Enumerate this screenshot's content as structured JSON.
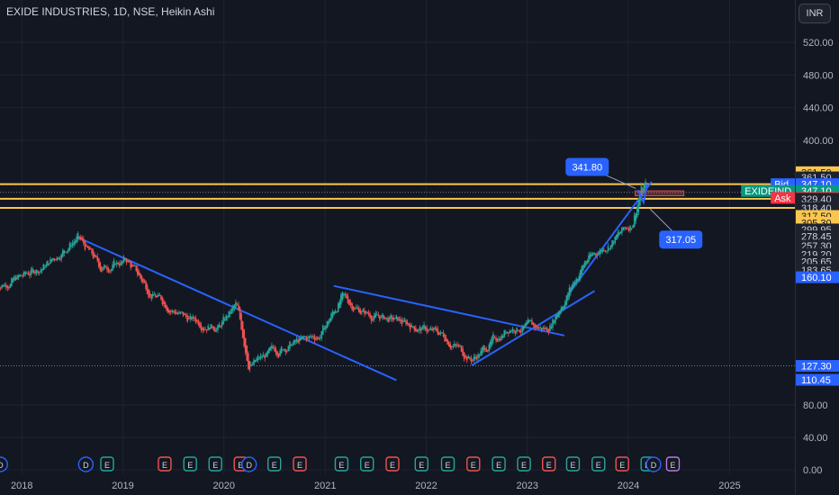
{
  "header": {
    "title": "EXIDE INDUSTRIES, 1D, NSE, Heikin Ashi",
    "currency": "INR"
  },
  "colors": {
    "background": "#131722",
    "up": "#26a69a",
    "down": "#ef5350",
    "trendline": "#2962ff",
    "level": "#f9c74f",
    "grid": "#1f2330",
    "axis_text": "#b2b5be"
  },
  "chart_data": {
    "type": "candlestick",
    "ylim": [
      0,
      546
    ],
    "y_ticks": [
      "0.00",
      "40.00",
      "80.00",
      "400.00",
      "440.00",
      "480.00",
      "520.00"
    ],
    "x_ticks": [
      "2018",
      "2019",
      "2020",
      "2021",
      "2022",
      "2023",
      "2024",
      "2025"
    ],
    "price_path": [
      {
        "date": "2017-10-01",
        "price": 225
      },
      {
        "date": "2018-01-01",
        "price": 235
      },
      {
        "date": "2018-04-01",
        "price": 250
      },
      {
        "date": "2018-07-20",
        "price": 283
      },
      {
        "date": "2018-10-15",
        "price": 245
      },
      {
        "date": "2019-01-15",
        "price": 255
      },
      {
        "date": "2019-04-15",
        "price": 215
      },
      {
        "date": "2019-08-15",
        "price": 185
      },
      {
        "date": "2019-12-15",
        "price": 175
      },
      {
        "date": "2020-02-15",
        "price": 200
      },
      {
        "date": "2020-04-01",
        "price": 128
      },
      {
        "date": "2020-08-01",
        "price": 150
      },
      {
        "date": "2020-12-15",
        "price": 165
      },
      {
        "date": "2021-03-01",
        "price": 210
      },
      {
        "date": "2021-06-01",
        "price": 190
      },
      {
        "date": "2021-10-01",
        "price": 180
      },
      {
        "date": "2022-03-01",
        "price": 165
      },
      {
        "date": "2022-06-15",
        "price": 135
      },
      {
        "date": "2022-11-01",
        "price": 175
      },
      {
        "date": "2023-03-15",
        "price": 172
      },
      {
        "date": "2023-08-01",
        "price": 255
      },
      {
        "date": "2023-11-01",
        "price": 278
      },
      {
        "date": "2024-01-15",
        "price": 300
      },
      {
        "date": "2024-02-15",
        "price": 341.8
      },
      {
        "date": "2024-03-10",
        "price": 347.1
      }
    ],
    "horizontal_levels": [
      347.1,
      329.4,
      318.4
    ],
    "dotted_levels": [
      347.1,
      127.3
    ],
    "trendlines": [
      {
        "from": {
          "date": "2018-07-20",
          "price": 283
        },
        "to": {
          "date": "2021-09-15",
          "price": 110
        }
      },
      {
        "from": {
          "date": "2021-02-01",
          "price": 224
        },
        "to": {
          "date": "2023-05-15",
          "price": 164
        }
      },
      {
        "from": {
          "date": "2022-06-15",
          "price": 128
        },
        "to": {
          "date": "2023-09-01",
          "price": 218
        }
      },
      {
        "from": {
          "date": "2023-06-01",
          "price": 215
        },
        "to": {
          "date": "2024-03-25",
          "price": 350
        }
      }
    ],
    "zone": {
      "from_date": "2024-01-25",
      "to_date": "2024-07-20",
      "top": 339,
      "bottom": 333
    },
    "projection": [
      {
        "date": "2024-02-05",
        "price": 340
      },
      {
        "date": "2024-02-25",
        "price": 325
      },
      {
        "date": "2024-03-10",
        "price": 347
      }
    ],
    "callouts": [
      {
        "text": "341.80",
        "date": "2024-01-28",
        "price": 341.8
      },
      {
        "text": "317.05",
        "date": "2024-03-20",
        "price": 317.05
      }
    ],
    "price_labels": [
      {
        "text": "361.50",
        "price": 361.5,
        "style": "yellow"
      },
      {
        "text": "361.50",
        "price": 355.3,
        "style": "dark"
      },
      {
        "text": "347.10",
        "price": 347.1,
        "style": "blue",
        "tag": "Bid"
      },
      {
        "text": "347.10",
        "price": 338.8,
        "style": "teal",
        "tag": "EXIDEIND"
      },
      {
        "text": "347.10",
        "price": 330.5,
        "style": "red",
        "tag": "Ask"
      },
      {
        "text": "329.40",
        "price": 329.4,
        "style": "dark"
      },
      {
        "text": "318.40",
        "price": 318.4,
        "style": "dark"
      },
      {
        "text": "317.50",
        "price": 308.6,
        "style": "yellow"
      },
      {
        "text": "305.30",
        "price": 300.5,
        "style": "yellow"
      },
      {
        "text": "299.95",
        "price": 292.3,
        "style": "dark"
      },
      {
        "text": "278.45",
        "price": 284.2,
        "style": "dark"
      },
      {
        "text": "257.30",
        "price": 272.9,
        "style": "dark"
      },
      {
        "text": "219.20",
        "price": 262.5,
        "style": "dark"
      },
      {
        "text": "205.65",
        "price": 253.4,
        "style": "dark"
      },
      {
        "text": "183.65",
        "price": 243.5,
        "style": "dark"
      },
      {
        "text": "160.10",
        "price": 234.5,
        "style": "blue"
      },
      {
        "text": "127.30",
        "price": 127.3,
        "style": "blue"
      },
      {
        "text": "110.45",
        "price": 110.45,
        "style": "blue"
      }
    ],
    "events": [
      {
        "type": "D",
        "date": "2017-10-15"
      },
      {
        "type": "D",
        "date": "2018-08-20"
      },
      {
        "type": "E",
        "date": "2018-11-05"
      },
      {
        "type": "E",
        "date": "2019-06-01"
      },
      {
        "type": "E",
        "date": "2019-09-01"
      },
      {
        "type": "E",
        "date": "2019-12-01"
      },
      {
        "type": "E",
        "date": "2020-03-01"
      },
      {
        "type": "D",
        "date": "2020-04-01"
      },
      {
        "type": "E",
        "date": "2020-07-01"
      },
      {
        "type": "E",
        "date": "2020-10-01"
      },
      {
        "type": "E",
        "date": "2021-03-01"
      },
      {
        "type": "E",
        "date": "2021-06-01"
      },
      {
        "type": "E",
        "date": "2021-09-01"
      },
      {
        "type": "E",
        "date": "2021-12-15"
      },
      {
        "type": "E",
        "date": "2022-03-20"
      },
      {
        "type": "E",
        "date": "2022-06-20"
      },
      {
        "type": "E",
        "date": "2022-09-20"
      },
      {
        "type": "E",
        "date": "2022-12-20"
      },
      {
        "type": "E",
        "date": "2023-03-20"
      },
      {
        "type": "E",
        "date": "2023-06-15"
      },
      {
        "type": "E",
        "date": "2023-09-15"
      },
      {
        "type": "E",
        "date": "2023-12-10"
      },
      {
        "type": "E",
        "date": "2024-03-10"
      },
      {
        "type": "D",
        "date": "2024-04-01"
      },
      {
        "type": "E",
        "date": "2024-06-10"
      }
    ]
  }
}
